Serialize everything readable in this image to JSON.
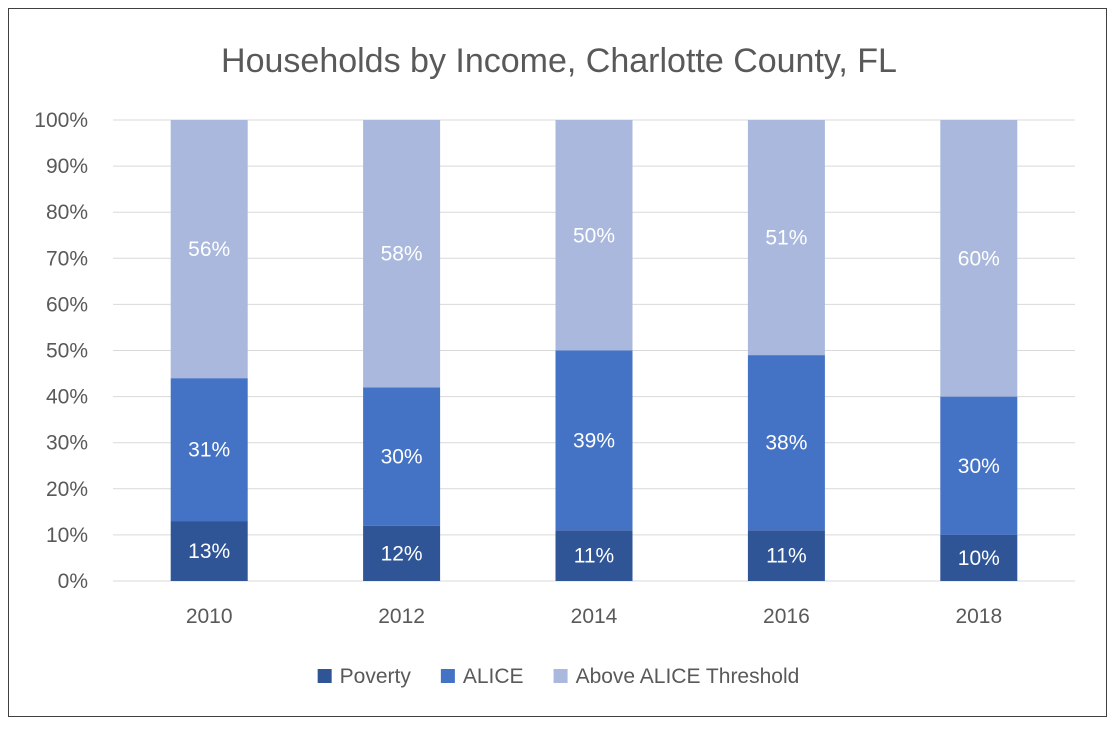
{
  "chart_data": {
    "type": "bar",
    "stacked": true,
    "title": "Households by Income, Charlotte County, FL",
    "categories": [
      "2010",
      "2012",
      "2014",
      "2016",
      "2018"
    ],
    "series": [
      {
        "name": "Poverty",
        "color": "#2f5597",
        "values": [
          13,
          12,
          11,
          11,
          10
        ],
        "labels": [
          "13%",
          "12%",
          "11%",
          "11%",
          "10%"
        ]
      },
      {
        "name": "ALICE",
        "color": "#4472c4",
        "values": [
          31,
          30,
          39,
          38,
          30
        ],
        "labels": [
          "31%",
          "30%",
          "39%",
          "38%",
          "30%"
        ]
      },
      {
        "name": "Above ALICE Threshold",
        "color": "#a9b8dc",
        "values": [
          56,
          58,
          50,
          51,
          60
        ],
        "labels": [
          "56%",
          "58%",
          "50%",
          "51%",
          "60%"
        ]
      }
    ],
    "ylim": [
      0,
      100
    ],
    "yticks": [
      "0%",
      "10%",
      "20%",
      "30%",
      "40%",
      "50%",
      "60%",
      "70%",
      "80%",
      "90%",
      "100%"
    ],
    "grid": true,
    "legend": "bottom"
  }
}
